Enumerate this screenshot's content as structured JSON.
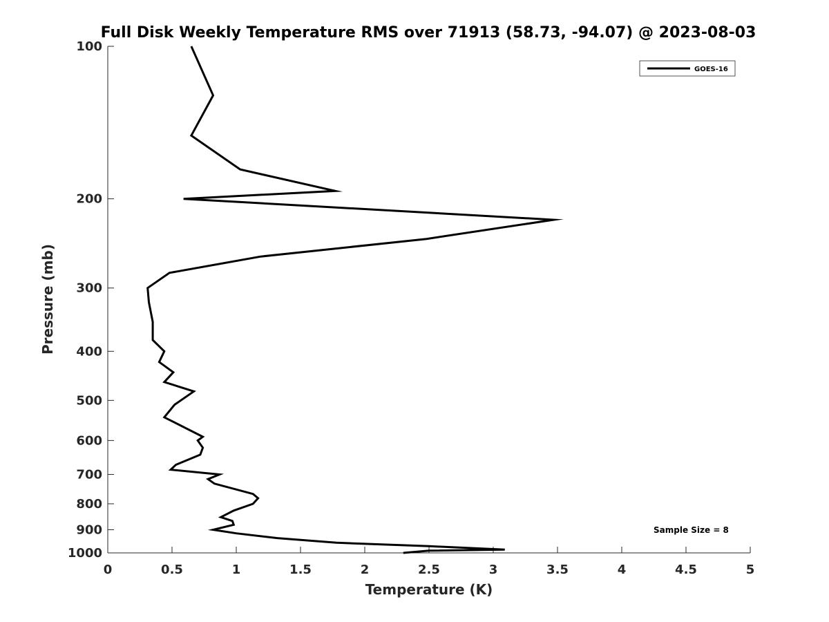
{
  "chart_data": {
    "type": "line",
    "title": "Full Disk Weekly Temperature RMS over 71913 (58.73, -94.07) @ 2023-08-03",
    "xlabel": "Temperature (K)",
    "ylabel": "Pressure (mb)",
    "xlim": [
      0,
      5
    ],
    "ylim": [
      1000,
      100
    ],
    "y_scale": "log",
    "y_reversed": true,
    "x_ticks": [
      0,
      0.5,
      1,
      1.5,
      2,
      2.5,
      3,
      3.5,
      4,
      4.5,
      5
    ],
    "x_tick_labels": [
      "0",
      "0.5",
      "1",
      "1.5",
      "2",
      "2.5",
      "3",
      "3.5",
      "4",
      "4.5",
      "5"
    ],
    "y_ticks": [
      100,
      200,
      300,
      400,
      500,
      600,
      700,
      800,
      900,
      1000
    ],
    "y_tick_labels": [
      "100",
      "200",
      "300",
      "400",
      "500",
      "600",
      "700",
      "800",
      "900",
      "1000"
    ],
    "grid": false,
    "legend_position": "top-right",
    "annotation": "Sample Size = 8",
    "series": [
      {
        "name": "GOES-16",
        "color": "#000000",
        "points": [
          [
            0.65,
            100
          ],
          [
            0.82,
            125
          ],
          [
            0.65,
            150
          ],
          [
            1.03,
            175
          ],
          [
            1.77,
            193
          ],
          [
            0.59,
            200
          ],
          [
            3.47,
            220
          ],
          [
            2.48,
            240
          ],
          [
            1.19,
            260
          ],
          [
            0.48,
            280
          ],
          [
            0.31,
            300
          ],
          [
            0.32,
            320
          ],
          [
            0.35,
            350
          ],
          [
            0.35,
            380
          ],
          [
            0.44,
            400
          ],
          [
            0.4,
            420
          ],
          [
            0.51,
            440
          ],
          [
            0.44,
            460
          ],
          [
            0.67,
            480
          ],
          [
            0.52,
            510
          ],
          [
            0.44,
            540
          ],
          [
            0.74,
            590
          ],
          [
            0.7,
            600
          ],
          [
            0.74,
            620
          ],
          [
            0.72,
            640
          ],
          [
            0.53,
            670
          ],
          [
            0.49,
            685
          ],
          [
            0.87,
            700
          ],
          [
            0.78,
            715
          ],
          [
            0.83,
            730
          ],
          [
            1.13,
            765
          ],
          [
            1.17,
            780
          ],
          [
            1.13,
            800
          ],
          [
            0.98,
            825
          ],
          [
            0.88,
            850
          ],
          [
            0.97,
            865
          ],
          [
            0.98,
            880
          ],
          [
            0.82,
            900
          ],
          [
            1.0,
            915
          ],
          [
            1.32,
            935
          ],
          [
            1.78,
            955
          ],
          [
            2.5,
            970
          ],
          [
            3.09,
            985
          ],
          [
            2.5,
            990
          ],
          [
            2.3,
            1000
          ]
        ]
      }
    ]
  }
}
